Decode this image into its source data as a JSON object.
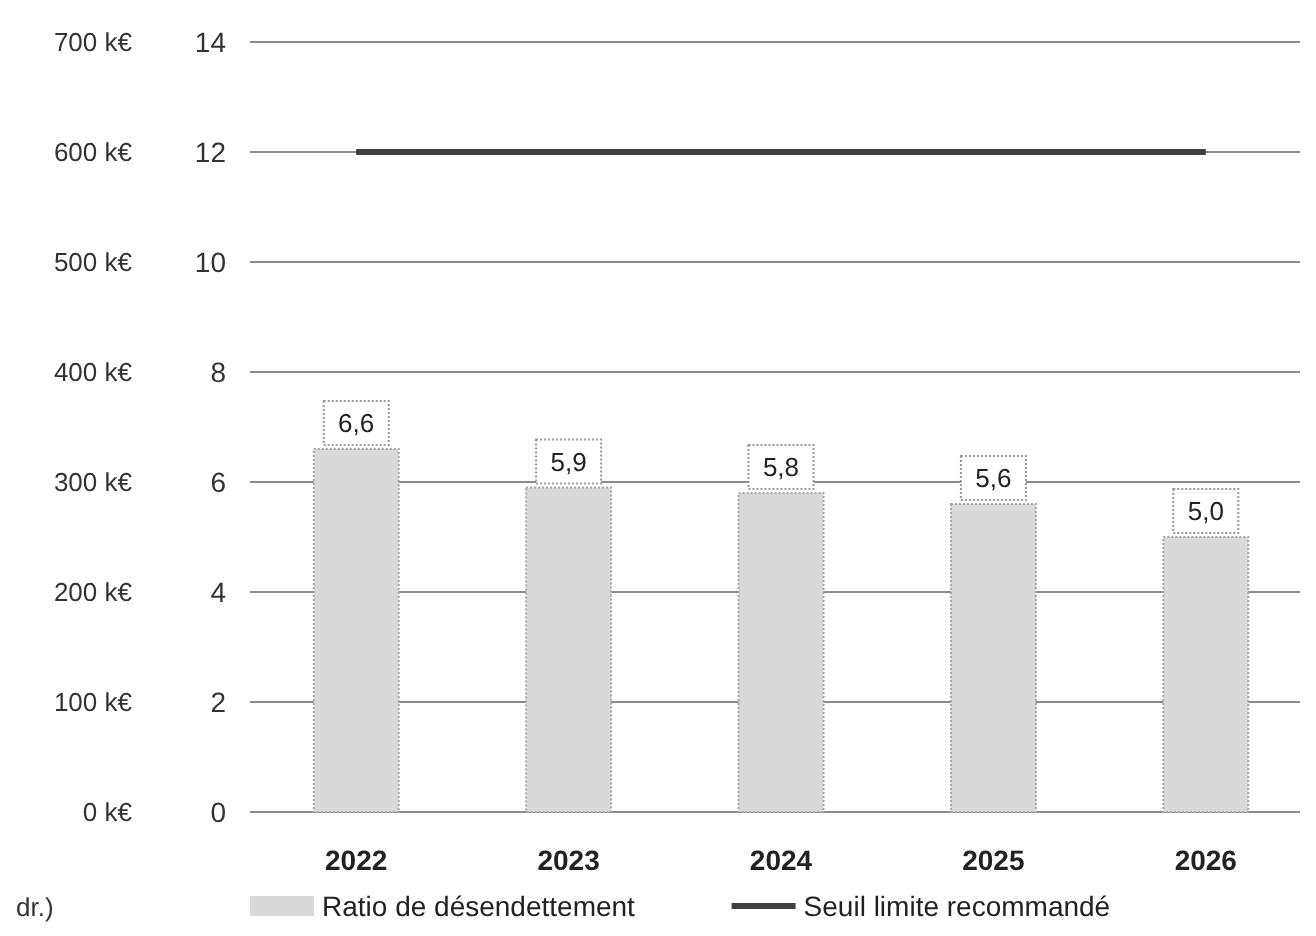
{
  "chart_data": {
    "type": "bar",
    "categories": [
      "2022",
      "2023",
      "2024",
      "2025",
      "2026"
    ],
    "series": [
      {
        "name": "Ratio de désendettement",
        "color": "#d9d9d9",
        "values": [
          6.6,
          5.9,
          5.8,
          5.6,
          5.0
        ],
        "value_labels": [
          "6,6",
          "5,9",
          "5,8",
          "5,6",
          "5,0"
        ]
      },
      {
        "name": "Seuil limite recommandé",
        "type": "line",
        "color": "#404040",
        "values": [
          12,
          12,
          12,
          12,
          12
        ]
      }
    ],
    "ylim": [
      0,
      14
    ],
    "yticks": [
      0,
      2,
      4,
      6,
      8,
      10,
      12,
      14
    ],
    "y2lim": [
      0,
      700
    ],
    "y2ticks": [
      {
        "value": 0,
        "label": "0 k€"
      },
      {
        "value": 100,
        "label": "100 k€"
      },
      {
        "value": 200,
        "label": "200 k€"
      },
      {
        "value": 300,
        "label": "300 k€"
      },
      {
        "value": 400,
        "label": "400 k€"
      },
      {
        "value": 500,
        "label": "500 k€"
      },
      {
        "value": 600,
        "label": "600 k€"
      },
      {
        "value": 700,
        "label": "700 k€"
      }
    ],
    "grid": "y",
    "legend": "bottom",
    "annotations": [
      "dr.)"
    ]
  }
}
